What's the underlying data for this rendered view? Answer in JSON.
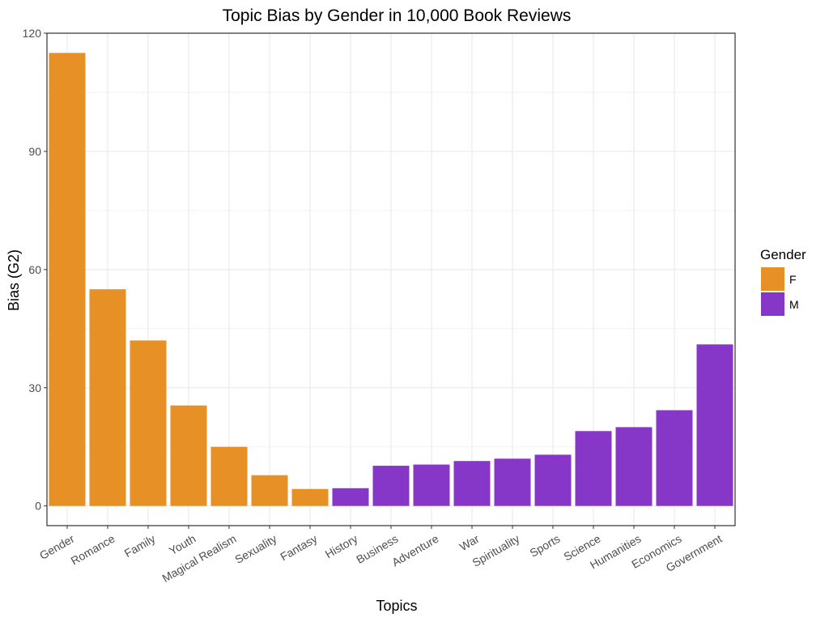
{
  "chart_data": {
    "type": "bar",
    "title": "Topic Bias by Gender in 10,000 Book Reviews",
    "xlabel": "Topics",
    "ylabel": "Bias (G2)",
    "ylim": [
      -5,
      120
    ],
    "yticks": [
      0,
      30,
      60,
      90,
      120
    ],
    "grid": true,
    "legend": {
      "title": "Gender",
      "position": "right",
      "entries": [
        {
          "label": "F",
          "color": "#E69026"
        },
        {
          "label": "M",
          "color": "#8637C8"
        }
      ]
    },
    "categories": [
      "Gender",
      "Romance",
      "Family",
      "Youth",
      "Magical Realism",
      "Sexuality",
      "Fantasy",
      "History",
      "Business",
      "Adventure",
      "War",
      "Spirituality",
      "Sports",
      "Science",
      "Humanities",
      "Economics",
      "Government"
    ],
    "values": [
      115,
      55,
      42,
      25.5,
      15,
      7.8,
      4.3,
      4.5,
      10.2,
      10.5,
      11.4,
      12,
      13,
      19,
      20,
      24.3,
      41
    ],
    "groups": [
      "F",
      "F",
      "F",
      "F",
      "F",
      "F",
      "F",
      "M",
      "M",
      "M",
      "M",
      "M",
      "M",
      "M",
      "M",
      "M",
      "M"
    ]
  }
}
